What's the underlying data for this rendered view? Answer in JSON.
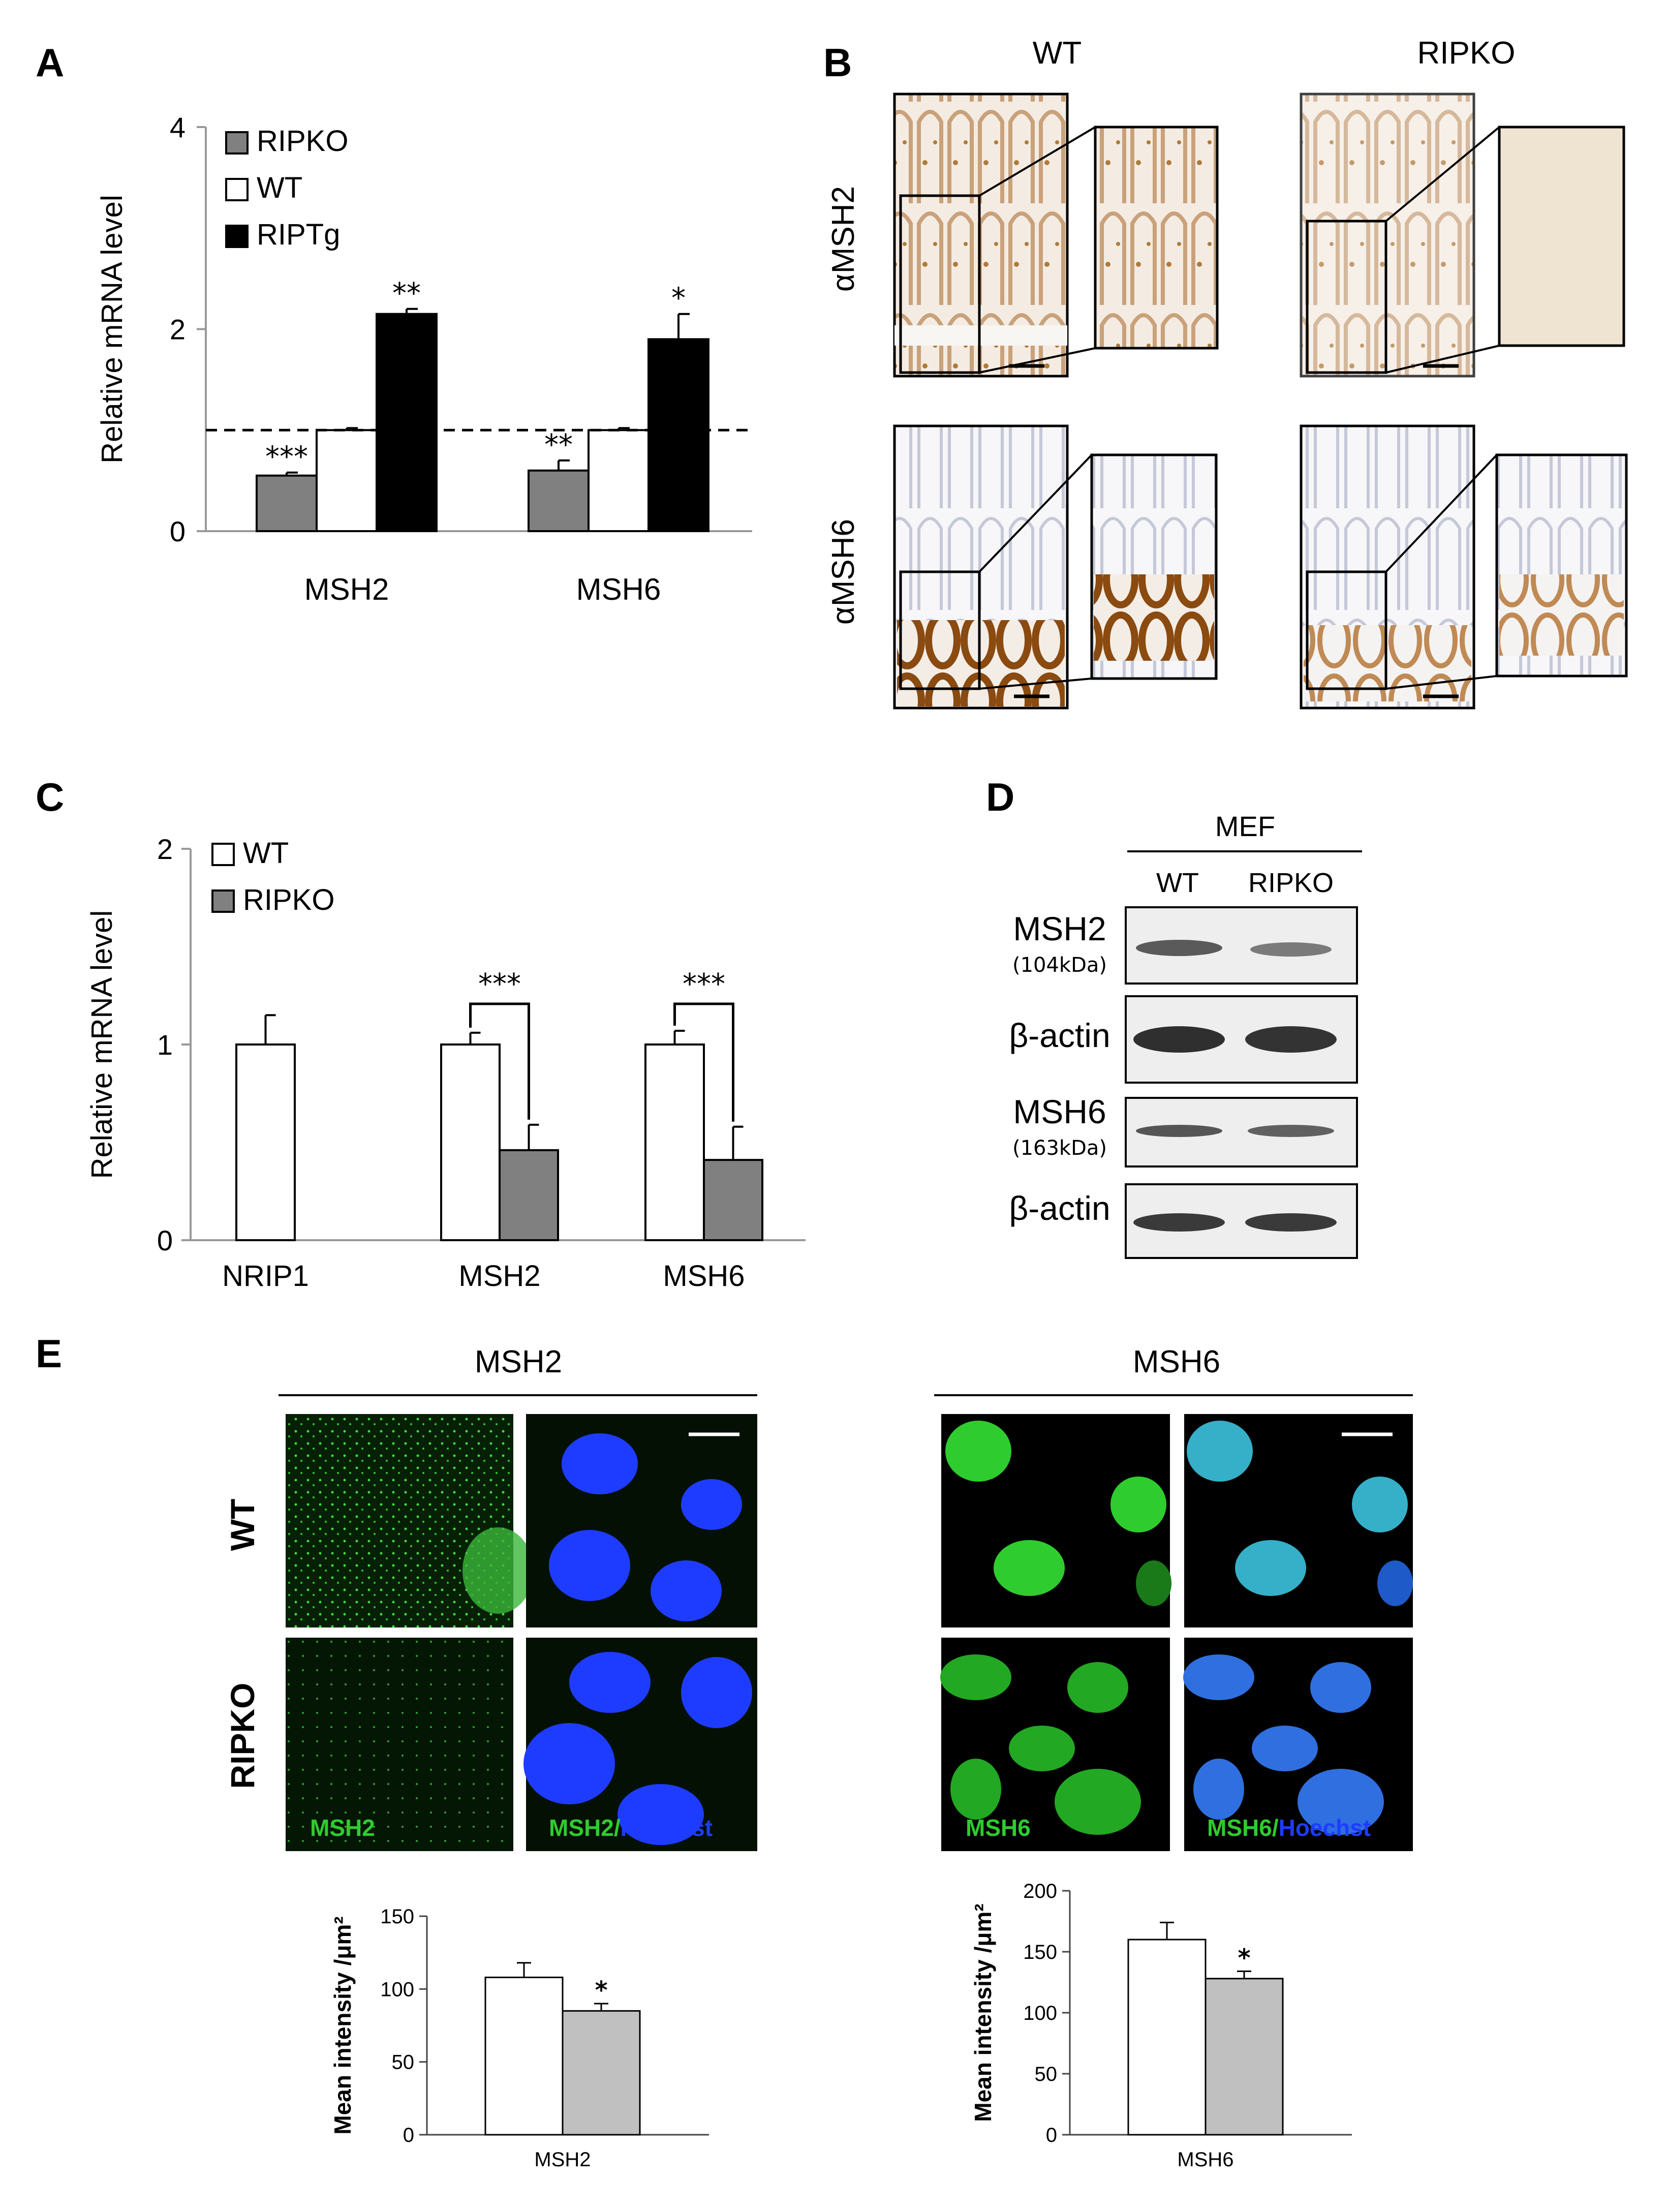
{
  "panels": {
    "A": {
      "letter": "A"
    },
    "B": {
      "letter": "B",
      "col_wt": "WT",
      "col_ko": "RIPKO",
      "row1": "αMSH2",
      "row2": "αMSH6"
    },
    "C": {
      "letter": "C"
    },
    "D": {
      "letter": "D",
      "header": "MEF",
      "col_wt": "WT",
      "col_ko": "RIPKO",
      "bands": [
        {
          "label": "MSH2",
          "sub": "(104kDa)"
        },
        {
          "label": "β-actin",
          "sub": ""
        },
        {
          "label": "MSH6",
          "sub": "(163kDa)"
        },
        {
          "label": "β-actin",
          "sub": ""
        }
      ]
    },
    "E": {
      "letter": "E",
      "col1": "MSH2",
      "col2": "MSH6",
      "row1": "WT",
      "row2": "RIPKO",
      "msh2_label": "MSH2",
      "msh6_label": "MSH6",
      "sep": "/",
      "hoechst": "Hoechst"
    }
  },
  "colors": {
    "ripko": "#808080",
    "wt": "#ffffff",
    "riptg": "#000000",
    "ihc_stain": "#b07a3a",
    "gfp": "#2ecc2e",
    "hoechst": "#1e3cff",
    "bar_gray": "#c0c0c0"
  },
  "chart_data": [
    {
      "panel": "A",
      "type": "bar",
      "ylabel": "Relative mRNA level",
      "ylim": [
        0,
        4
      ],
      "yticks": [
        "0",
        "2",
        "4"
      ],
      "categories": [
        "MSH2",
        "MSH6"
      ],
      "reference_line": 1,
      "series": [
        {
          "name": "RIPKO",
          "values": [
            0.55,
            0.6
          ],
          "errors": [
            0.03,
            0.1
          ],
          "sig": [
            "***",
            "**"
          ]
        },
        {
          "name": "WT",
          "values": [
            1.0,
            1.0
          ],
          "errors": [
            0.02,
            0.02
          ],
          "sig": [
            "",
            ""
          ]
        },
        {
          "name": "RIPTg",
          "values": [
            2.15,
            1.9
          ],
          "errors": [
            0.05,
            0.25
          ],
          "sig": [
            "**",
            "*"
          ]
        }
      ]
    },
    {
      "panel": "C",
      "type": "bar",
      "ylabel": "Relative mRNA level",
      "ylim": [
        0,
        2
      ],
      "yticks": [
        "0",
        "1",
        "2"
      ],
      "categories": [
        "NRIP1",
        "MSH2",
        "MSH6"
      ],
      "series": [
        {
          "name": "WT",
          "values": [
            1.0,
            1.0,
            1.0
          ],
          "errors": [
            0.15,
            0.06,
            0.07
          ]
        },
        {
          "name": "RIPKO",
          "values": [
            null,
            0.46,
            0.41
          ],
          "errors": [
            null,
            0.13,
            0.17
          ]
        }
      ],
      "brackets": [
        "",
        "***",
        "***"
      ]
    },
    {
      "panel": "E-MSH2",
      "type": "bar",
      "ylabel": "Mean intensity /μm²",
      "ylim": [
        0,
        150
      ],
      "yticks": [
        "0",
        "50",
        "100",
        "150"
      ],
      "categories": [
        "MSH2"
      ],
      "series": [
        {
          "name": "WT",
          "values": [
            108
          ],
          "errors": [
            10
          ]
        },
        {
          "name": "RIPKO",
          "values": [
            85
          ],
          "errors": [
            5
          ],
          "sig": "*"
        }
      ]
    },
    {
      "panel": "E-MSH6",
      "type": "bar",
      "ylabel": "Mean intensity /μm²",
      "ylim": [
        0,
        200
      ],
      "yticks": [
        "0",
        "50",
        "100",
        "150",
        "200"
      ],
      "categories": [
        "MSH6"
      ],
      "series": [
        {
          "name": "WT",
          "values": [
            160
          ],
          "errors": [
            14
          ]
        },
        {
          "name": "RIPKO",
          "values": [
            128
          ],
          "errors": [
            6
          ],
          "sig": "*"
        }
      ]
    }
  ]
}
